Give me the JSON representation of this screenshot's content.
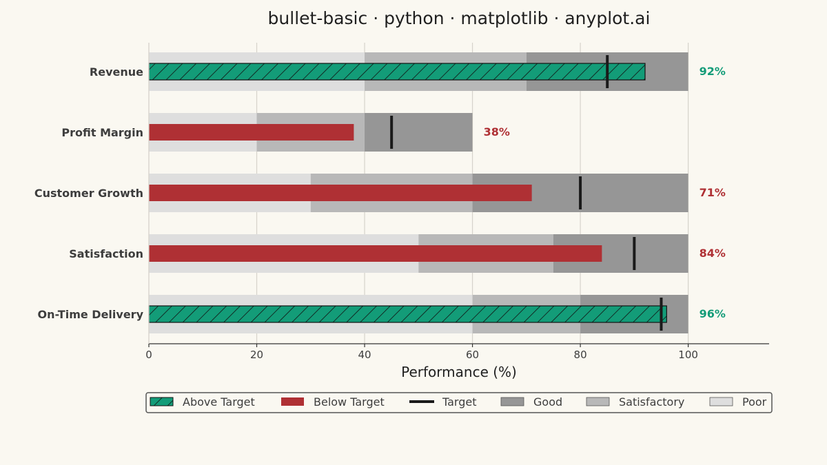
{
  "chart_data": {
    "type": "bar",
    "subtype": "bullet",
    "orientation": "horizontal",
    "title": "bullet-basic · python · matplotlib · anyplot.ai",
    "xlabel": "Performance (%)",
    "xlim": [
      0,
      115
    ],
    "xticks": [
      0,
      20,
      40,
      60,
      80,
      100
    ],
    "grid": "vertical",
    "categories": [
      "Revenue",
      "Profit Margin",
      "Customer Growth",
      "Satisfaction",
      "On-Time Delivery"
    ],
    "values": [
      92,
      38,
      71,
      84,
      96
    ],
    "value_labels": [
      "92%",
      "38%",
      "71%",
      "84%",
      "96%"
    ],
    "targets": [
      85,
      45,
      80,
      90,
      95
    ],
    "ranges": [
      {
        "poor": [
          0,
          40
        ],
        "satisfactory": [
          40,
          70
        ],
        "good": [
          70,
          100
        ]
      },
      {
        "poor": [
          0,
          20
        ],
        "satisfactory": [
          20,
          40
        ],
        "good": [
          40,
          60
        ]
      },
      {
        "poor": [
          0,
          30
        ],
        "satisfactory": [
          30,
          60
        ],
        "good": [
          60,
          100
        ]
      },
      {
        "poor": [
          0,
          50
        ],
        "satisfactory": [
          50,
          75
        ],
        "good": [
          75,
          100
        ]
      },
      {
        "poor": [
          0,
          60
        ],
        "satisfactory": [
          60,
          80
        ],
        "good": [
          80,
          100
        ]
      }
    ],
    "legend": {
      "position": "bottom-center",
      "entries": [
        "Above Target",
        "Below Target",
        "Target",
        "Good",
        "Satisfactory",
        "Poor"
      ]
    },
    "colors": {
      "above": "#139C78",
      "below": "#AF3034",
      "target": "#1a1a1a",
      "good": "#969696",
      "satisfactory": "#B8B8B8",
      "poor": "#DEDEDE",
      "background": "#FAF8F1",
      "grid": "#D6D3CB"
    }
  }
}
